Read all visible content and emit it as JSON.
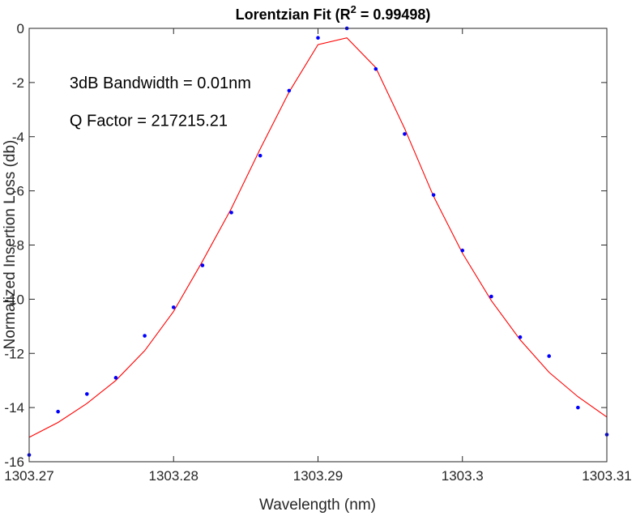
{
  "chart_data": {
    "type": "scatter",
    "title_main": "Lorentzian Fit (R",
    "title_sup": "2",
    "title_end": " = 0.99498)",
    "xlabel": "Wavelength (nm)",
    "ylabel": "Normalized Insertion Loss (db)",
    "xlim": [
      1303.27,
      1303.31
    ],
    "ylim": [
      -16,
      0
    ],
    "xticks": [
      1303.27,
      1303.28,
      1303.29,
      1303.3,
      1303.31
    ],
    "xtick_labels": [
      "1303.27",
      "1303.28",
      "1303.29",
      "1303.3",
      "1303.31"
    ],
    "yticks": [
      -16,
      -14,
      -12,
      -10,
      -8,
      -6,
      -4,
      -2,
      0
    ],
    "ytick_labels": [
      "-16",
      "-14",
      "-12",
      "-10",
      "-8",
      "-6",
      "-4",
      "-2",
      "0"
    ],
    "grid": false,
    "annotations": [
      {
        "text": "3dB Bandwidth = 0.01nm",
        "x": 1303.2728,
        "y": -2.0
      },
      {
        "text": "Q Factor = 217215.21",
        "x": 1303.2728,
        "y": -3.4
      }
    ],
    "series": [
      {
        "style": "markers",
        "color": "#0000ff",
        "x": [
          1303.27,
          1303.272,
          1303.274,
          1303.276,
          1303.278,
          1303.28,
          1303.282,
          1303.284,
          1303.286,
          1303.288,
          1303.29,
          1303.292,
          1303.294,
          1303.296,
          1303.298,
          1303.3,
          1303.302,
          1303.304,
          1303.306,
          1303.308,
          1303.31
        ],
        "y": [
          -15.75,
          -14.15,
          -13.5,
          -12.9,
          -11.35,
          -10.3,
          -8.75,
          -6.8,
          -4.7,
          -2.3,
          -0.35,
          0.0,
          -1.5,
          -3.9,
          -6.15,
          -8.2,
          -9.9,
          -11.4,
          -12.1,
          -14.0,
          -15.0
        ]
      },
      {
        "style": "line",
        "color": "#ff0000",
        "x": [
          1303.27,
          1303.272,
          1303.274,
          1303.276,
          1303.278,
          1303.28,
          1303.282,
          1303.284,
          1303.286,
          1303.288,
          1303.29,
          1303.292,
          1303.294,
          1303.296,
          1303.298,
          1303.3,
          1303.302,
          1303.304,
          1303.306,
          1303.308,
          1303.31
        ],
        "y": [
          -15.1,
          -14.55,
          -13.85,
          -13.0,
          -11.9,
          -10.45,
          -8.6,
          -6.65,
          -4.45,
          -2.35,
          -0.6,
          -0.35,
          -1.45,
          -3.7,
          -6.2,
          -8.3,
          -10.05,
          -11.5,
          -12.7,
          -13.6,
          -14.35
        ]
      }
    ]
  }
}
